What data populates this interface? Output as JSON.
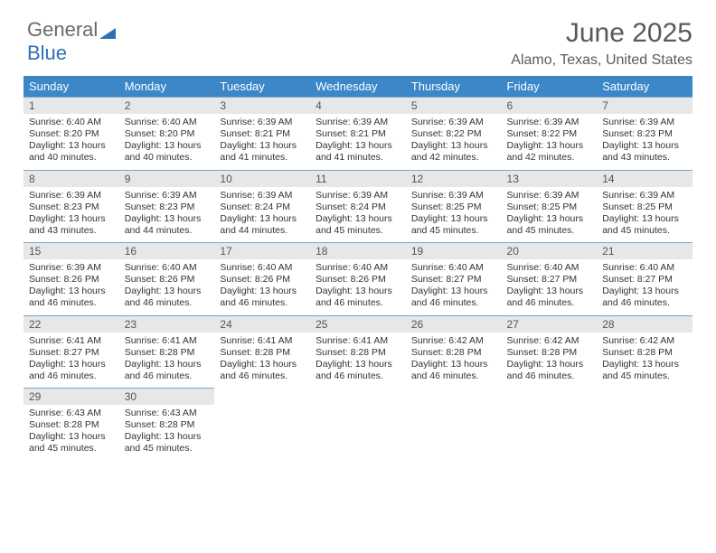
{
  "brand": {
    "part1": "General",
    "part2": "Blue"
  },
  "title": "June 2025",
  "location": "Alamo, Texas, United States",
  "colors": {
    "header_bg": "#3b87c8",
    "header_text": "#ffffff",
    "daynum_bg": "#e7e7e7",
    "border": "#7aa6c9",
    "text": "#333333",
    "title_color": "#5a5a5a"
  },
  "weekdays": [
    "Sunday",
    "Monday",
    "Tuesday",
    "Wednesday",
    "Thursday",
    "Friday",
    "Saturday"
  ],
  "days": [
    {
      "n": 1,
      "sunrise": "6:40 AM",
      "sunset": "8:20 PM",
      "day_h": 13,
      "day_m": 40
    },
    {
      "n": 2,
      "sunrise": "6:40 AM",
      "sunset": "8:20 PM",
      "day_h": 13,
      "day_m": 40
    },
    {
      "n": 3,
      "sunrise": "6:39 AM",
      "sunset": "8:21 PM",
      "day_h": 13,
      "day_m": 41
    },
    {
      "n": 4,
      "sunrise": "6:39 AM",
      "sunset": "8:21 PM",
      "day_h": 13,
      "day_m": 41
    },
    {
      "n": 5,
      "sunrise": "6:39 AM",
      "sunset": "8:22 PM",
      "day_h": 13,
      "day_m": 42
    },
    {
      "n": 6,
      "sunrise": "6:39 AM",
      "sunset": "8:22 PM",
      "day_h": 13,
      "day_m": 42
    },
    {
      "n": 7,
      "sunrise": "6:39 AM",
      "sunset": "8:23 PM",
      "day_h": 13,
      "day_m": 43
    },
    {
      "n": 8,
      "sunrise": "6:39 AM",
      "sunset": "8:23 PM",
      "day_h": 13,
      "day_m": 43
    },
    {
      "n": 9,
      "sunrise": "6:39 AM",
      "sunset": "8:23 PM",
      "day_h": 13,
      "day_m": 44
    },
    {
      "n": 10,
      "sunrise": "6:39 AM",
      "sunset": "8:24 PM",
      "day_h": 13,
      "day_m": 44
    },
    {
      "n": 11,
      "sunrise": "6:39 AM",
      "sunset": "8:24 PM",
      "day_h": 13,
      "day_m": 45
    },
    {
      "n": 12,
      "sunrise": "6:39 AM",
      "sunset": "8:25 PM",
      "day_h": 13,
      "day_m": 45
    },
    {
      "n": 13,
      "sunrise": "6:39 AM",
      "sunset": "8:25 PM",
      "day_h": 13,
      "day_m": 45
    },
    {
      "n": 14,
      "sunrise": "6:39 AM",
      "sunset": "8:25 PM",
      "day_h": 13,
      "day_m": 45
    },
    {
      "n": 15,
      "sunrise": "6:39 AM",
      "sunset": "8:26 PM",
      "day_h": 13,
      "day_m": 46
    },
    {
      "n": 16,
      "sunrise": "6:40 AM",
      "sunset": "8:26 PM",
      "day_h": 13,
      "day_m": 46
    },
    {
      "n": 17,
      "sunrise": "6:40 AM",
      "sunset": "8:26 PM",
      "day_h": 13,
      "day_m": 46
    },
    {
      "n": 18,
      "sunrise": "6:40 AM",
      "sunset": "8:26 PM",
      "day_h": 13,
      "day_m": 46
    },
    {
      "n": 19,
      "sunrise": "6:40 AM",
      "sunset": "8:27 PM",
      "day_h": 13,
      "day_m": 46
    },
    {
      "n": 20,
      "sunrise": "6:40 AM",
      "sunset": "8:27 PM",
      "day_h": 13,
      "day_m": 46
    },
    {
      "n": 21,
      "sunrise": "6:40 AM",
      "sunset": "8:27 PM",
      "day_h": 13,
      "day_m": 46
    },
    {
      "n": 22,
      "sunrise": "6:41 AM",
      "sunset": "8:27 PM",
      "day_h": 13,
      "day_m": 46
    },
    {
      "n": 23,
      "sunrise": "6:41 AM",
      "sunset": "8:28 PM",
      "day_h": 13,
      "day_m": 46
    },
    {
      "n": 24,
      "sunrise": "6:41 AM",
      "sunset": "8:28 PM",
      "day_h": 13,
      "day_m": 46
    },
    {
      "n": 25,
      "sunrise": "6:41 AM",
      "sunset": "8:28 PM",
      "day_h": 13,
      "day_m": 46
    },
    {
      "n": 26,
      "sunrise": "6:42 AM",
      "sunset": "8:28 PM",
      "day_h": 13,
      "day_m": 46
    },
    {
      "n": 27,
      "sunrise": "6:42 AM",
      "sunset": "8:28 PM",
      "day_h": 13,
      "day_m": 46
    },
    {
      "n": 28,
      "sunrise": "6:42 AM",
      "sunset": "8:28 PM",
      "day_h": 13,
      "day_m": 45
    },
    {
      "n": 29,
      "sunrise": "6:43 AM",
      "sunset": "8:28 PM",
      "day_h": 13,
      "day_m": 45
    },
    {
      "n": 30,
      "sunrise": "6:43 AM",
      "sunset": "8:28 PM",
      "day_h": 13,
      "day_m": 45
    }
  ],
  "labels": {
    "sunrise": "Sunrise:",
    "sunset": "Sunset:",
    "daylight_prefix": "Daylight:",
    "hours_word": "hours",
    "and_word": "and",
    "minutes_word": "minutes."
  },
  "layout": {
    "cols": 7,
    "rows": 5,
    "first_weekday_index": 0
  }
}
